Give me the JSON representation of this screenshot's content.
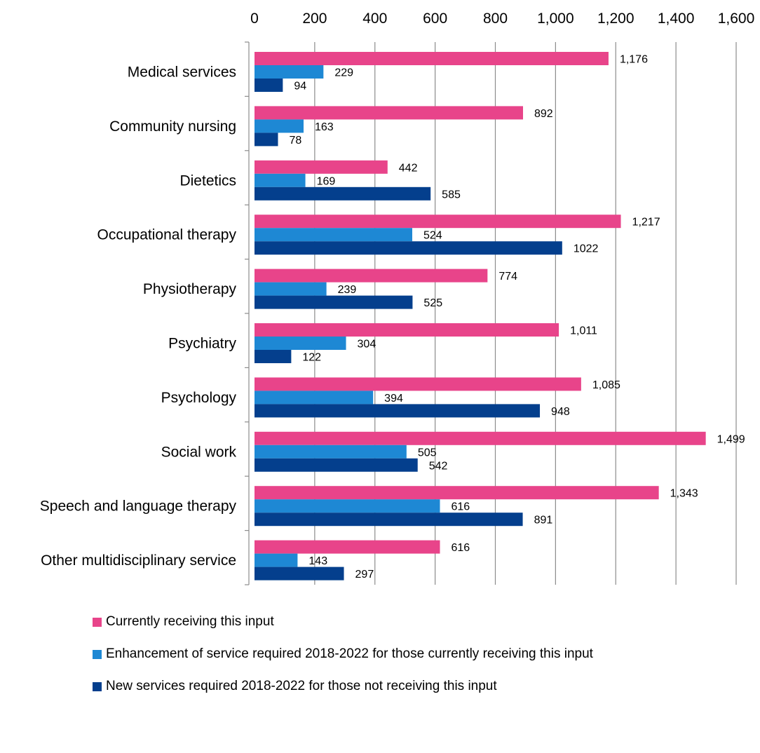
{
  "chart_data": {
    "type": "bar",
    "orientation": "horizontal",
    "title": "",
    "xlabel": "",
    "ylabel": "",
    "xlim": [
      0,
      1600
    ],
    "x_ticks": [
      "0",
      "200",
      "400",
      "600",
      "800",
      "1,000",
      "1,200",
      "1,400",
      "1,600"
    ],
    "x_axis_position": "top",
    "grid": true,
    "legend_position": "bottom",
    "categories": [
      "Medical services",
      "Community nursing",
      "Dietetics",
      "Occupational therapy",
      "Physiotherapy",
      "Psychiatry",
      "Psychology",
      "Social work",
      "Speech and language therapy",
      "Other multidisciplinary service"
    ],
    "series": [
      {
        "name": "Currently receiving this input",
        "color": "#E8448A",
        "values": [
          1176,
          892,
          442,
          1217,
          774,
          1011,
          1085,
          1499,
          1343,
          616
        ],
        "labels": [
          "1,176",
          "892",
          "442",
          "1,217",
          "774",
          "1,011",
          "1,085",
          "1,499",
          "1,343",
          "616"
        ]
      },
      {
        "name": "Enhancement of service required 2018-2022 for those currently receiving this input",
        "color": "#1E88D4",
        "values": [
          229,
          163,
          169,
          524,
          239,
          304,
          394,
          505,
          616,
          143
        ],
        "labels": [
          "229",
          "163",
          "169",
          "524",
          "239",
          "304",
          "394",
          "505",
          "616",
          "143"
        ]
      },
      {
        "name": "New services required 2018-2022 for those not receiving this input",
        "color": "#043F8D",
        "values": [
          94,
          78,
          585,
          1022,
          525,
          122,
          948,
          542,
          891,
          297
        ],
        "labels": [
          "94",
          "78",
          "585",
          "1022",
          "525",
          "122",
          "948",
          "542",
          "891",
          "297"
        ]
      }
    ]
  }
}
